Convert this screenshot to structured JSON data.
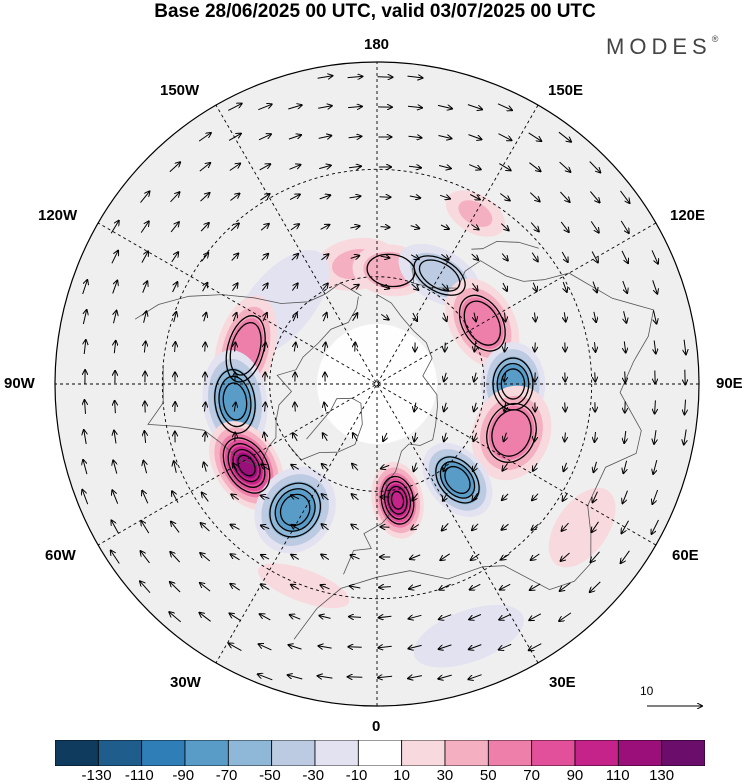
{
  "title": "Base 28/06/2025 00 UTC, valid 03/07/2025 00 UTC",
  "brand": "MODES",
  "brand_mark": "®",
  "longitude_labels": {
    "top": "180",
    "top_left": "150W",
    "top_right": "150E",
    "upper_left": "120W",
    "upper_right": "120E",
    "left": "90W",
    "right": "90E",
    "lower_left": "60W",
    "lower_right": "60E",
    "bottom_left": "30W",
    "bottom_right": "30E",
    "bottom": "0"
  },
  "vector_reference": "10",
  "colorbar": {
    "labels": [
      "-130",
      "-110",
      "-90",
      "-70",
      "-50",
      "-30",
      "-10",
      "10",
      "30",
      "50",
      "70",
      "90",
      "110",
      "130"
    ],
    "colors": [
      "#0f3b5f",
      "#1f5d8c",
      "#2f7eb7",
      "#5a9cc8",
      "#8fb8d8",
      "#bccbe2",
      "#e3e2f0",
      "#ffffff",
      "#f8d9dd",
      "#f4afc1",
      "#ee7eaa",
      "#e24f9b",
      "#c5228a",
      "#9b0f7a",
      "#6b0d6a"
    ]
  },
  "anomaly_centers": [
    {
      "lon": -170,
      "lat": 56,
      "value": 30,
      "rx": 0.13,
      "ry": 0.08
    },
    {
      "lon": 173,
      "lat": 58,
      "value": 40,
      "rx": 0.12,
      "ry": 0.08
    },
    {
      "lon": 150,
      "lat": 55,
      "value": -50,
      "rx": 0.14,
      "ry": 0.08
    },
    {
      "lon": 150,
      "lat": 35,
      "value": 30,
      "rx": 0.1,
      "ry": 0.06
    },
    {
      "lon": 120,
      "lat": 56,
      "value": 55,
      "rx": 0.15,
      "ry": 0.1
    },
    {
      "lon": -130,
      "lat": 55,
      "value": -25,
      "rx": 0.2,
      "ry": 0.1
    },
    {
      "lon": -105,
      "lat": 52,
      "value": 55,
      "rx": 0.17,
      "ry": 0.09
    },
    {
      "lon": 90,
      "lat": 52,
      "value": -80,
      "rx": 0.13,
      "ry": 0.1
    },
    {
      "lon": -83,
      "lat": 50,
      "value": -85,
      "rx": 0.16,
      "ry": 0.1
    },
    {
      "lon": 70,
      "lat": 50,
      "value": 55,
      "rx": 0.15,
      "ry": 0.12
    },
    {
      "lon": -58,
      "lat": 47,
      "value": 110,
      "rx": 0.15,
      "ry": 0.1
    },
    {
      "lon": 40,
      "lat": 55,
      "value": -80,
      "rx": 0.09,
      "ry": 0.13
    },
    {
      "lon": -33,
      "lat": 48,
      "value": -90,
      "rx": 0.12,
      "ry": 0.14
    },
    {
      "lon": 10,
      "lat": 57,
      "value": 100,
      "rx": 0.08,
      "ry": 0.12
    },
    {
      "lon": -20,
      "lat": 30,
      "value": 25,
      "rx": 0.15,
      "ry": 0.05
    },
    {
      "lon": 20,
      "lat": 15,
      "value": -20,
      "rx": 0.18,
      "ry": 0.08
    },
    {
      "lon": 55,
      "lat": 20,
      "value": 15,
      "rx": 0.14,
      "ry": 0.08
    }
  ]
}
